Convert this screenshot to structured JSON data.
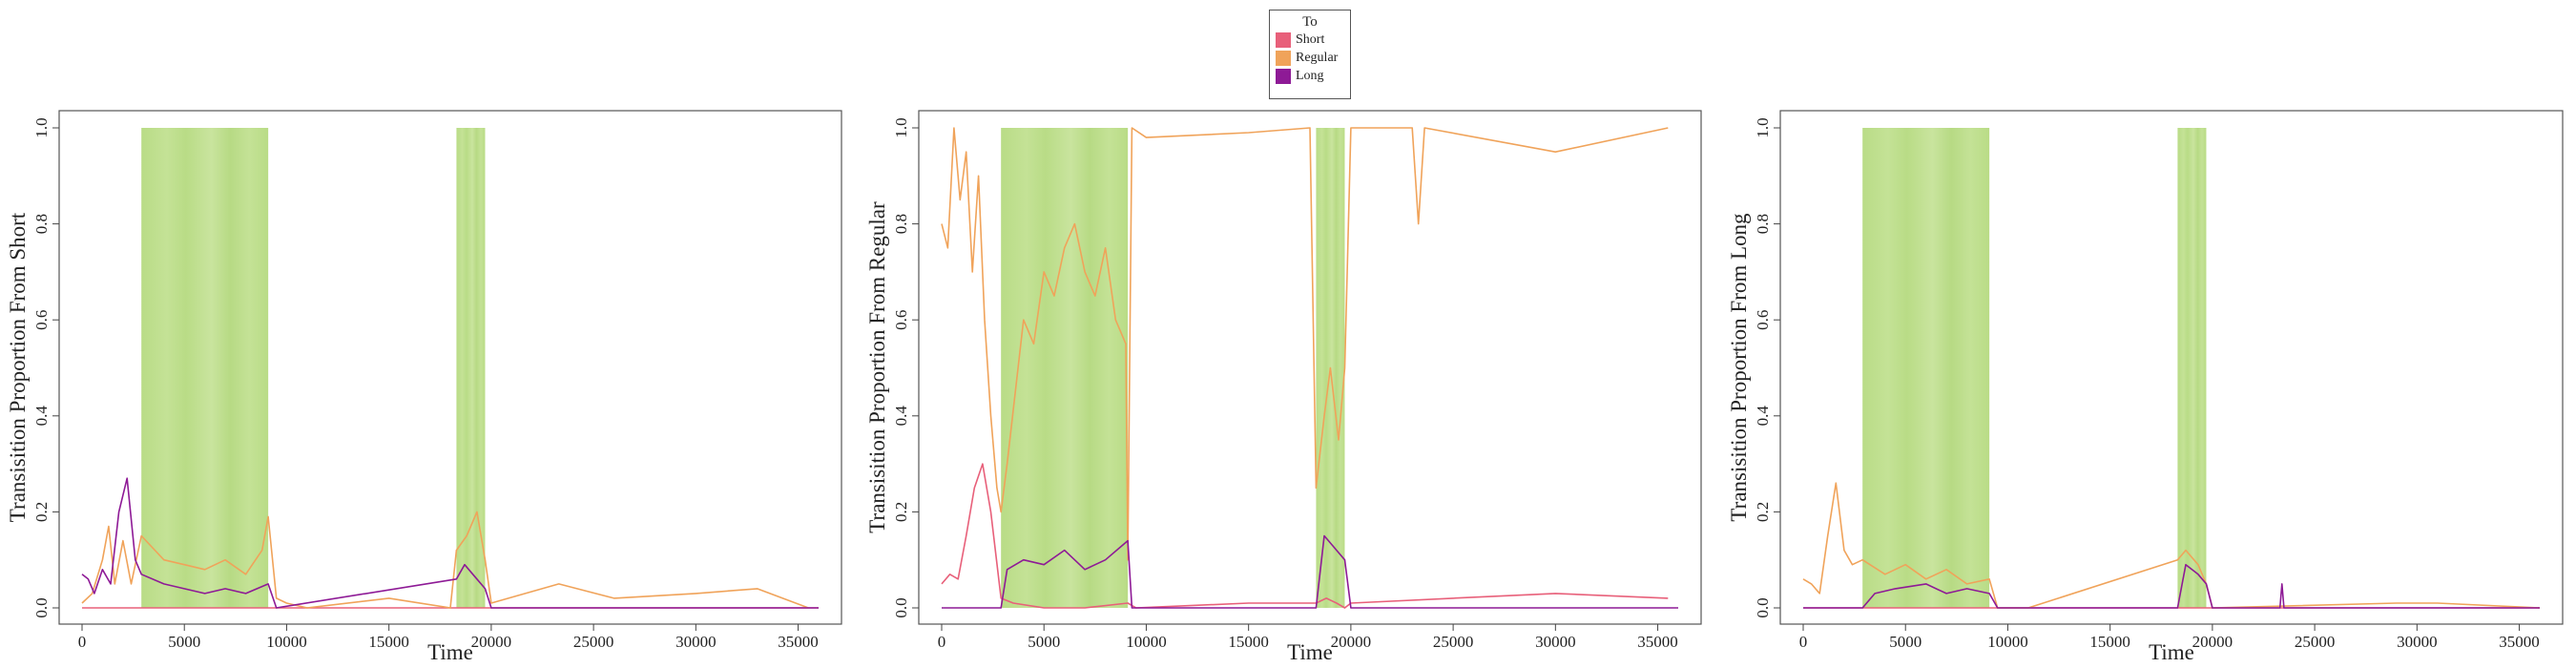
{
  "legend": {
    "title": "To",
    "items": [
      {
        "label": "Short",
        "color": "#e8607a"
      },
      {
        "label": "Regular",
        "color": "#f0a35a"
      },
      {
        "label": "Long",
        "color": "#8e1a96"
      }
    ]
  },
  "chart_data": [
    {
      "type": "line",
      "ylabel": "Transisition Proportion From Short",
      "xlabel": "Time",
      "xlim": [
        0,
        36000
      ],
      "ylim": [
        0,
        1
      ],
      "x_ticks": [
        0,
        5000,
        10000,
        15000,
        20000,
        25000,
        30000,
        35000
      ],
      "y_ticks": [
        "0.0",
        "0.2",
        "0.4",
        "0.6",
        "0.8",
        "1.0"
      ],
      "shaded_intervals": [
        [
          2900,
          9100
        ],
        [
          18300,
          19700
        ]
      ],
      "series": [
        {
          "name": "Short",
          "x": [
            0,
            36000
          ],
          "y": [
            0,
            0
          ]
        },
        {
          "name": "Regular",
          "x": [
            0,
            500,
            1000,
            1300,
            1600,
            2000,
            2400,
            2900,
            4000,
            5000,
            6000,
            7000,
            8000,
            8800,
            9100,
            9500,
            10000,
            11000,
            15000,
            18000,
            18300,
            18800,
            19300,
            19700,
            20000,
            23300,
            26000,
            30000,
            33000,
            35500
          ],
          "y": [
            0.01,
            0.03,
            0.1,
            0.17,
            0.05,
            0.14,
            0.05,
            0.15,
            0.1,
            0.09,
            0.08,
            0.1,
            0.07,
            0.12,
            0.19,
            0.02,
            0.01,
            0.0,
            0.02,
            0.0,
            0.12,
            0.15,
            0.2,
            0.1,
            0.01,
            0.05,
            0.02,
            0.03,
            0.04,
            0.0
          ]
        },
        {
          "name": "Long",
          "x": [
            0,
            300,
            600,
            1000,
            1400,
            1800,
            2200,
            2600,
            2900,
            4000,
            5000,
            6000,
            7000,
            8000,
            9100,
            9500,
            18300,
            18700,
            19100,
            19700,
            20000,
            36000
          ],
          "y": [
            0.07,
            0.06,
            0.03,
            0.08,
            0.05,
            0.2,
            0.27,
            0.1,
            0.07,
            0.05,
            0.04,
            0.03,
            0.04,
            0.03,
            0.05,
            0.0,
            0.06,
            0.09,
            0.07,
            0.04,
            0.0,
            0.0
          ]
        }
      ]
    },
    {
      "type": "line",
      "ylabel": "Transisition Proportion From Regular",
      "xlabel": "Time",
      "xlim": [
        0,
        36000
      ],
      "ylim": [
        0,
        1
      ],
      "x_ticks": [
        0,
        5000,
        10000,
        15000,
        20000,
        25000,
        30000,
        35000
      ],
      "y_ticks": [
        "0.0",
        "0.2",
        "0.4",
        "0.6",
        "0.8",
        "1.0"
      ],
      "shaded_intervals": [
        [
          2900,
          9100
        ],
        [
          18300,
          19700
        ]
      ],
      "series": [
        {
          "name": "Short",
          "x": [
            0,
            400,
            800,
            1200,
            1600,
            2000,
            2400,
            2900,
            3500,
            5000,
            7000,
            9100,
            9500,
            15000,
            18300,
            18800,
            19300,
            19700,
            20000,
            25000,
            30000,
            35500
          ],
          "y": [
            0.05,
            0.07,
            0.06,
            0.15,
            0.25,
            0.3,
            0.2,
            0.02,
            0.01,
            0.0,
            0.0,
            0.01,
            0.0,
            0.01,
            0.01,
            0.02,
            0.01,
            0.0,
            0.01,
            0.02,
            0.03,
            0.02
          ]
        },
        {
          "name": "Regular",
          "x": [
            0,
            300,
            600,
            900,
            1200,
            1500,
            1800,
            2100,
            2400,
            2700,
            2900,
            3200,
            3600,
            4000,
            4500,
            5000,
            5500,
            6000,
            6500,
            7000,
            7500,
            8000,
            8500,
            9000,
            9100,
            9300,
            10000,
            15000,
            18000,
            18300,
            18700,
            19000,
            19400,
            19700,
            20000,
            23000,
            23300,
            23600,
            30000,
            35500
          ],
          "y": [
            0.8,
            0.75,
            1.0,
            0.85,
            0.95,
            0.7,
            0.9,
            0.6,
            0.4,
            0.25,
            0.2,
            0.3,
            0.45,
            0.6,
            0.55,
            0.7,
            0.65,
            0.75,
            0.8,
            0.7,
            0.65,
            0.75,
            0.6,
            0.55,
            0.1,
            1.0,
            0.98,
            0.99,
            1.0,
            0.25,
            0.4,
            0.5,
            0.35,
            0.5,
            1.0,
            1.0,
            0.8,
            1.0,
            0.95,
            1.0
          ]
        },
        {
          "name": "Long",
          "x": [
            0,
            2900,
            3200,
            4000,
            5000,
            6000,
            7000,
            8000,
            9100,
            9300,
            18300,
            18700,
            19300,
            19700,
            20000,
            36000
          ],
          "y": [
            0.0,
            0.0,
            0.08,
            0.1,
            0.09,
            0.12,
            0.08,
            0.1,
            0.14,
            0.0,
            0.0,
            0.15,
            0.12,
            0.1,
            0.0,
            0.0
          ]
        }
      ]
    },
    {
      "type": "line",
      "ylabel": "Transisition Proportion From Long",
      "xlabel": "Time",
      "xlim": [
        0,
        36000
      ],
      "ylim": [
        0,
        1
      ],
      "x_ticks": [
        0,
        5000,
        10000,
        15000,
        20000,
        25000,
        30000,
        35000
      ],
      "y_ticks": [
        "0.0",
        "0.2",
        "0.4",
        "0.6",
        "0.8",
        "1.0"
      ],
      "shaded_intervals": [
        [
          2900,
          9100
        ],
        [
          18300,
          19700
        ]
      ],
      "series": [
        {
          "name": "Short",
          "x": [
            0,
            36000
          ],
          "y": [
            0,
            0
          ]
        },
        {
          "name": "Regular",
          "x": [
            0,
            400,
            800,
            1200,
            1600,
            2000,
            2400,
            2900,
            4000,
            5000,
            6000,
            7000,
            8000,
            9100,
            9500,
            11000,
            18300,
            18700,
            19300,
            19700,
            20000,
            29000,
            31000,
            36000
          ],
          "y": [
            0.06,
            0.05,
            0.03,
            0.15,
            0.26,
            0.12,
            0.09,
            0.1,
            0.07,
            0.09,
            0.06,
            0.08,
            0.05,
            0.06,
            0.0,
            0.0,
            0.1,
            0.12,
            0.09,
            0.05,
            0.0,
            0.01,
            0.01,
            0.0
          ]
        },
        {
          "name": "Long",
          "x": [
            0,
            2900,
            3500,
            4500,
            6000,
            7000,
            8000,
            9100,
            9500,
            18300,
            18700,
            19300,
            19700,
            20000,
            23300,
            23400,
            23500,
            36000
          ],
          "y": [
            0.0,
            0.0,
            0.03,
            0.04,
            0.05,
            0.03,
            0.04,
            0.03,
            0.0,
            0.0,
            0.09,
            0.07,
            0.05,
            0.0,
            0.0,
            0.05,
            0.0,
            0.0
          ]
        }
      ]
    }
  ]
}
